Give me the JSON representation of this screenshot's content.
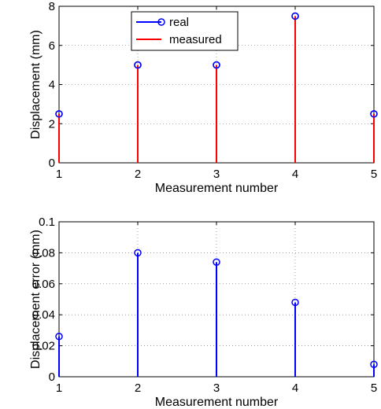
{
  "chart_data": [
    {
      "type": "stem",
      "title": "",
      "xlabel": "Measurement number",
      "ylabel": "Displacement (mm)",
      "xlim": [
        1,
        5
      ],
      "ylim": [
        0,
        8
      ],
      "xticks": [
        "1",
        "2",
        "3",
        "4",
        "5"
      ],
      "yticks": [
        "0",
        "2",
        "4",
        "6",
        "8"
      ],
      "grid": true,
      "legend_position": "top-center",
      "series": [
        {
          "name": "real",
          "color": "#0000ff",
          "marker": "circle",
          "x": [
            1,
            2,
            3,
            4,
            5
          ],
          "values": [
            2.5,
            5,
            5,
            7.5,
            2.5
          ]
        },
        {
          "name": "measured",
          "color": "#ff0000",
          "marker": "none",
          "x": [
            1,
            2,
            3,
            4,
            5
          ],
          "values": [
            2.5,
            5,
            5,
            7.5,
            2.5
          ]
        }
      ]
    },
    {
      "type": "stem",
      "title": "",
      "xlabel": "Measurement number",
      "ylabel": "Displacement error (mm)",
      "xlim": [
        1,
        5
      ],
      "ylim": [
        0,
        0.1
      ],
      "xticks": [
        "1",
        "2",
        "3",
        "4",
        "5"
      ],
      "yticks": [
        "0",
        "0.02",
        "0.04",
        "0.06",
        "0.08",
        "0.1"
      ],
      "grid": true,
      "series": [
        {
          "name": "",
          "color": "#0000ff",
          "marker": "circle",
          "x": [
            1,
            2,
            3,
            4,
            5
          ],
          "values": [
            0.026,
            0.08,
            0.074,
            0.048,
            0.008
          ]
        }
      ]
    }
  ]
}
